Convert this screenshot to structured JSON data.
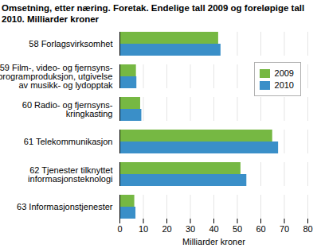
{
  "chart_data": {
    "type": "bar",
    "title": "Omsetning, etter næring. Foretak. Endelige tall 2009 og foreløpige tall 2010. Milliarder kroner",
    "orientation": "horizontal",
    "categories": [
      "58 Forlagsvirksomhet",
      "59 Film-, video- og fjernsyns-\nprogramproduksjon, utgivelse\nav musikk- og lydopptak",
      "60 Radio- og fjernsyns-\nkringkasting",
      "61 Telekommunikasjon",
      "62 Tjenester tilknyttet\ninformasjonsteknologi",
      "63 Informasjonstjenester"
    ],
    "series": [
      {
        "name": "2009",
        "color": "#76b843",
        "values": [
          42,
          7,
          8.8,
          65,
          51.5,
          6.3
        ]
      },
      {
        "name": "2010",
        "color": "#3a8fc8",
        "values": [
          43,
          7.2,
          9.3,
          67.5,
          54,
          6.8
        ]
      }
    ],
    "x_label": "Milliarder kroner",
    "xlim": [
      0,
      80
    ],
    "xticks": [
      0,
      10,
      20,
      30,
      40,
      50,
      60,
      70,
      80
    ],
    "grid": true,
    "legend": "right"
  }
}
